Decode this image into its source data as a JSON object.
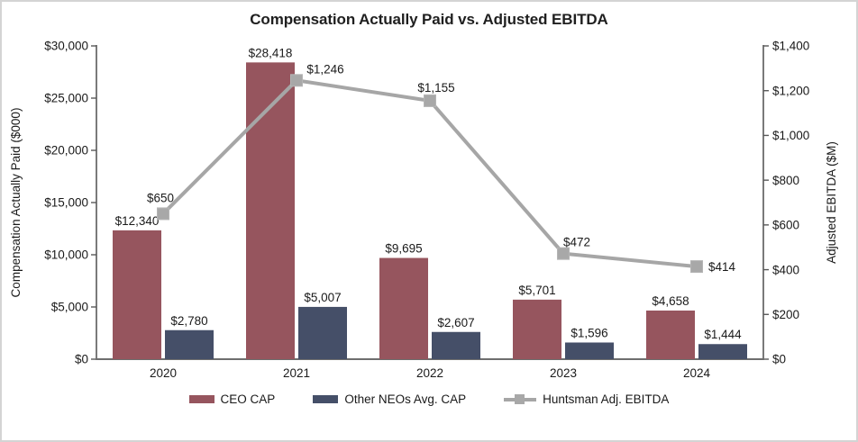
{
  "frame": {
    "background": "#ffffff",
    "border_color": "#d4d4d4"
  },
  "chart_data": {
    "type": "bar",
    "subtype": "combo-bar-line-dual-axis",
    "title": "Compensation Actually Paid vs. Adjusted EBITDA",
    "categories": [
      "2020",
      "2021",
      "2022",
      "2023",
      "2024"
    ],
    "left_axis": {
      "title": "Compensation Actually Paid ($000)",
      "min": 0,
      "max": 30000,
      "step": 5000,
      "tick_labels": [
        "$0",
        "$5,000",
        "$10,000",
        "$15,000",
        "$20,000",
        "$25,000",
        "$30,000"
      ]
    },
    "right_axis": {
      "title": "Adjusted EBITDA ($M)",
      "min": 0,
      "max": 1400,
      "step": 200,
      "tick_labels": [
        "$0",
        "$200",
        "$400",
        "$600",
        "$800",
        "$1,000",
        "$1,200",
        "$1,400"
      ]
    },
    "series": [
      {
        "name": "CEO CAP",
        "type": "bar",
        "axis": "left",
        "color": "#96555e",
        "values": [
          12340,
          28418,
          9695,
          5701,
          4658
        ],
        "labels": [
          "$12,340",
          "$28,418",
          "$9,695",
          "$5,701",
          "$4,658"
        ]
      },
      {
        "name": "Other NEOs Avg. CAP",
        "type": "bar",
        "axis": "left",
        "color": "#454f68",
        "values": [
          2780,
          5007,
          2607,
          1596,
          1444
        ],
        "labels": [
          "$2,780",
          "$5,007",
          "$2,607",
          "$1,596",
          "$1,444"
        ]
      },
      {
        "name": "Huntsman Adj. EBITDA",
        "type": "line",
        "axis": "right",
        "color": "#a6a6a6",
        "marker": "square",
        "marker_color": "#a8a8a8",
        "values": [
          650,
          1246,
          1155,
          472,
          414
        ],
        "labels": [
          "$650",
          "$1,246",
          "$1,155",
          "$472",
          "$414"
        ],
        "label_offsets": [
          {
            "dx": -3,
            "dy": -13,
            "anchor": "middle"
          },
          {
            "dx": 32,
            "dy": -8,
            "anchor": "middle"
          },
          {
            "dx": 7,
            "dy": -10,
            "anchor": "middle"
          },
          {
            "dx": 15,
            "dy": -8,
            "anchor": "middle"
          },
          {
            "dx": 13,
            "dy": 5,
            "anchor": "start"
          }
        ]
      }
    ],
    "legend": {
      "position": "bottom",
      "entries": [
        "CEO CAP",
        "Other NEOs Avg. CAP",
        "Huntsman Adj. EBITDA"
      ]
    },
    "style": {
      "axis_line_color": "#595959",
      "baseline_color": "#6e6e6e",
      "text_color": "#1a1a1a",
      "grid": "off",
      "plot_background": "#ffffff"
    }
  }
}
